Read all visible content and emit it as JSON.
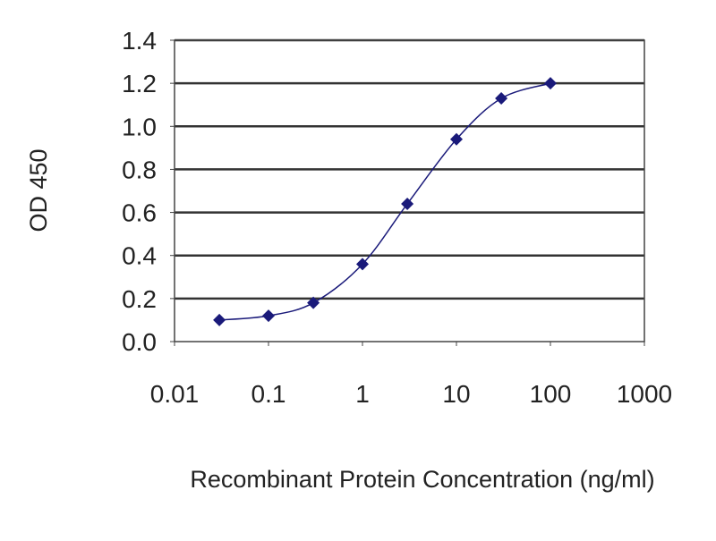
{
  "chart_data": {
    "type": "line",
    "title": "",
    "xlabel": "Recombinant Protein Concentration (ng/ml)",
    "ylabel": "OD 450",
    "xscale": "log",
    "xlim": [
      0.01,
      1000
    ],
    "ylim": [
      0,
      1.4
    ],
    "xticks": [
      "0.01",
      "0.1",
      "1",
      "10",
      "100",
      "1000"
    ],
    "yticks": [
      "0.0",
      "0.2",
      "0.4",
      "0.6",
      "0.8",
      "1.0",
      "1.2",
      "1.4"
    ],
    "grid": "horizontal",
    "legend": "none",
    "series": [
      {
        "color": "#1a1a7a",
        "x": [
          0.03,
          0.1,
          0.3,
          1,
          3,
          10,
          30,
          100
        ],
        "y": [
          0.1,
          0.12,
          0.18,
          0.36,
          0.64,
          0.94,
          1.13,
          1.2
        ]
      }
    ]
  }
}
